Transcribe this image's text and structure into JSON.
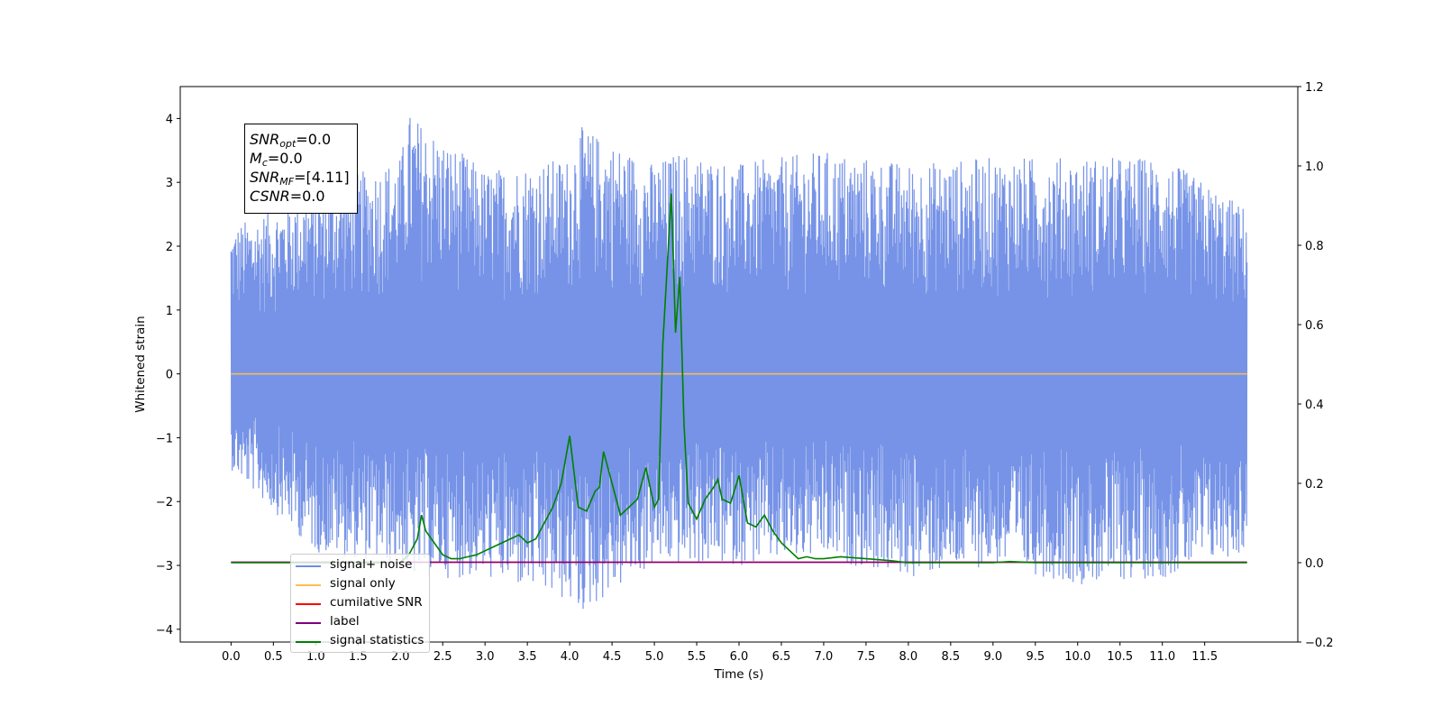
{
  "chart_data": {
    "type": "line",
    "xlabel": "Time (s)",
    "ylabel": "Whitened strain",
    "xlim": [
      -0.6,
      12.6
    ],
    "ylim": [
      -4.2,
      4.5
    ],
    "y2lim": [
      -0.2,
      1.2
    ],
    "x_ticks": [
      "0.0",
      "0.5",
      "1.0",
      "1.5",
      "2.0",
      "2.5",
      "3.0",
      "3.5",
      "4.0",
      "4.5",
      "5.0",
      "5.5",
      "6.0",
      "6.5",
      "7.0",
      "7.5",
      "8.0",
      "8.5",
      "9.0",
      "9.5",
      "10.0",
      "10.5",
      "11.0",
      "11.5"
    ],
    "y_ticks": [
      "−4",
      "−3",
      "−2",
      "−1",
      "0",
      "1",
      "2",
      "3",
      "4"
    ],
    "y2_ticks": [
      "−0.2",
      "0.0",
      "0.2",
      "0.4",
      "0.6",
      "0.8",
      "1.0",
      "1.2"
    ],
    "noise_envelope": {
      "x": [
        0.0,
        1.0,
        2.0,
        2.1,
        3.0,
        4.0,
        4.1,
        5.0,
        5.3,
        6.0,
        7.0,
        8.0,
        9.0,
        10.0,
        11.0,
        12.0
      ],
      "upper": [
        2.3,
        2.9,
        3.4,
        4.1,
        3.2,
        3.4,
        3.9,
        3.3,
        3.5,
        3.3,
        3.5,
        3.3,
        3.4,
        3.4,
        3.4,
        2.6
      ],
      "lower": [
        -1.5,
        -2.8,
        -3.0,
        -3.2,
        -3.2,
        -3.6,
        -3.8,
        -3.0,
        -3.0,
        -3.0,
        -2.9,
        -3.2,
        -3.0,
        -3.3,
        -3.2,
        -2.8
      ]
    },
    "series": [
      {
        "name": "signal+ noise",
        "color": "#6f8de6",
        "axis": "left",
        "x": [
          0.0,
          12.0
        ],
        "values": [
          0.0,
          0.0
        ]
      },
      {
        "name": "signal only",
        "color": "#ffbe4d",
        "axis": "left",
        "x": [
          0.0,
          12.0
        ],
        "values": [
          0.0,
          0.0
        ]
      },
      {
        "name": "cumilative SNR",
        "color": "#ff0000",
        "axis": "left",
        "x": [
          0.0,
          12.0
        ],
        "values": [
          -2.95,
          -2.95
        ]
      },
      {
        "name": "label",
        "color": "#800080",
        "axis": "left",
        "x": [
          0.0,
          12.0
        ],
        "values": [
          -2.95,
          -2.95
        ]
      },
      {
        "name": "signal statistics",
        "color": "#008000",
        "axis": "right",
        "x": [
          0.0,
          1.0,
          2.0,
          2.1,
          2.2,
          2.25,
          2.3,
          2.4,
          2.5,
          2.6,
          2.7,
          2.8,
          2.9,
          3.0,
          3.1,
          3.2,
          3.3,
          3.4,
          3.5,
          3.6,
          3.7,
          3.75,
          3.8,
          3.9,
          4.0,
          4.1,
          4.2,
          4.3,
          4.35,
          4.4,
          4.45,
          4.5,
          4.6,
          4.7,
          4.8,
          4.9,
          5.0,
          5.05,
          5.1,
          5.2,
          5.25,
          5.3,
          5.35,
          5.4,
          5.5,
          5.6,
          5.7,
          5.75,
          5.8,
          5.9,
          6.0,
          6.1,
          6.2,
          6.3,
          6.35,
          6.4,
          6.5,
          6.6,
          6.7,
          6.8,
          6.9,
          7.0,
          7.2,
          7.5,
          7.8,
          8.0,
          8.5,
          9.0,
          9.2,
          9.5,
          10.0,
          11.0,
          12.0
        ],
        "values": [
          0.0,
          0.0,
          0.0,
          0.02,
          0.06,
          0.12,
          0.08,
          0.05,
          0.02,
          0.01,
          0.01,
          0.015,
          0.02,
          0.03,
          0.04,
          0.05,
          0.06,
          0.07,
          0.05,
          0.06,
          0.1,
          0.12,
          0.14,
          0.2,
          0.32,
          0.14,
          0.13,
          0.18,
          0.19,
          0.28,
          0.24,
          0.2,
          0.12,
          0.14,
          0.16,
          0.24,
          0.14,
          0.16,
          0.55,
          0.93,
          0.58,
          0.72,
          0.35,
          0.15,
          0.11,
          0.16,
          0.19,
          0.21,
          0.16,
          0.15,
          0.22,
          0.1,
          0.09,
          0.12,
          0.1,
          0.08,
          0.05,
          0.03,
          0.01,
          0.015,
          0.01,
          0.01,
          0.015,
          0.01,
          0.005,
          0.0,
          0.0,
          0.0,
          0.003,
          0.0,
          0.0,
          0.0,
          0.0
        ]
      }
    ]
  },
  "annotation": {
    "snr_opt": {
      "base": "SNR",
      "sub": "opt",
      "value": "=0.0"
    },
    "mc": {
      "base": "M",
      "sub": "c",
      "value": "=0.0"
    },
    "snr_mf": {
      "base": "SNR",
      "sub": "MF",
      "value": "=[4.11]"
    },
    "csnr": {
      "base": "CSNR",
      "value": "=0.0"
    }
  },
  "legend": {
    "items": [
      {
        "label": "signal+ noise",
        "color": "#6f8de6"
      },
      {
        "label": "signal only",
        "color": "#ffbe4d"
      },
      {
        "label": "cumilative SNR",
        "color": "#ff0000"
      },
      {
        "label": "label",
        "color": "#800080"
      },
      {
        "label": "signal statistics",
        "color": "#008000"
      }
    ]
  }
}
